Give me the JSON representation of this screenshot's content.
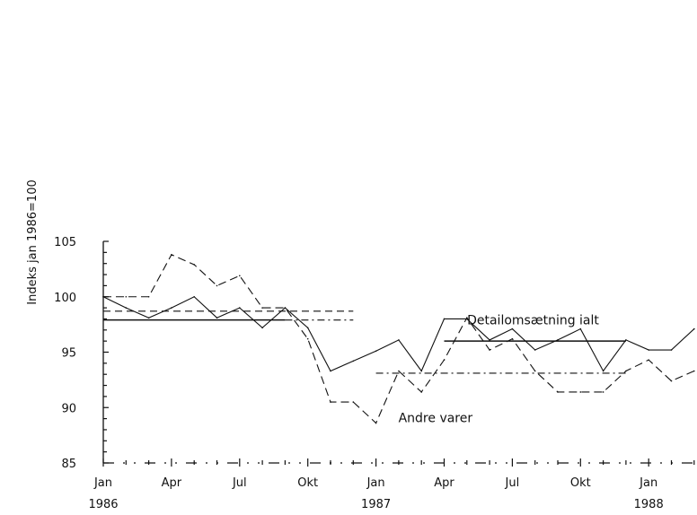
{
  "chart_data": {
    "type": "line",
    "ylabel": "Indeks jan 1986=100",
    "ylim": [
      85,
      105
    ],
    "yticks": [
      85,
      90,
      95,
      100,
      105
    ],
    "x_tick_labels": [
      {
        "month": 0,
        "label": "Jan"
      },
      {
        "month": 3,
        "label": "Apr"
      },
      {
        "month": 6,
        "label": "Jul"
      },
      {
        "month": 9,
        "label": "Okt"
      },
      {
        "month": 12,
        "label": "Jan"
      },
      {
        "month": 15,
        "label": "Apr"
      },
      {
        "month": 18,
        "label": "Jul"
      },
      {
        "month": 21,
        "label": "Okt"
      },
      {
        "month": 24,
        "label": "Jan"
      }
    ],
    "year_labels": [
      {
        "month": 0,
        "label": "1986"
      },
      {
        "month": 12,
        "label": "1987"
      },
      {
        "month": 24,
        "label": "1988"
      }
    ],
    "x_range": [
      "1986-01",
      "1988-03"
    ],
    "series": [
      {
        "name": "Detailomsætning ialt",
        "style": "solid",
        "x": [
          "1986-01",
          "1986-02",
          "1986-03",
          "1986-04",
          "1986-05",
          "1986-06",
          "1986-07",
          "1986-08",
          "1986-09",
          "1986-10",
          "1986-11",
          "1986-12",
          "1987-01",
          "1987-02",
          "1987-03",
          "1987-04",
          "1987-05",
          "1987-06",
          "1987-07",
          "1987-08",
          "1987-09",
          "1987-10",
          "1987-11",
          "1987-12",
          "1988-01",
          "1988-02",
          "1988-03"
        ],
        "values": [
          100.0,
          99.0,
          98.1,
          99.0,
          100.0,
          98.1,
          99.0,
          97.2,
          99.0,
          97.2,
          93.3,
          94.2,
          95.1,
          96.1,
          93.3,
          98.0,
          98.0,
          96.1,
          97.1,
          95.2,
          96.1,
          97.1,
          93.3,
          96.1,
          95.2,
          95.2,
          97.1
        ]
      },
      {
        "name": "Andre varer",
        "style": "dashed",
        "x": [
          "1986-01",
          "1986-02",
          "1986-03",
          "1986-04",
          "1986-05",
          "1986-06",
          "1986-07",
          "1986-08",
          "1986-09",
          "1986-10",
          "1986-11",
          "1986-12",
          "1987-01",
          "1987-02",
          "1987-03",
          "1987-04",
          "1987-05",
          "1987-06",
          "1987-07",
          "1987-08",
          "1987-09",
          "1987-10",
          "1987-11",
          "1987-12",
          "1988-01",
          "1988-02",
          "1988-03"
        ],
        "values": [
          100.0,
          100.0,
          100.0,
          103.8,
          102.9,
          101.0,
          101.9,
          99.0,
          99.0,
          96.2,
          90.5,
          90.5,
          88.6,
          93.3,
          91.4,
          94.3,
          98.1,
          95.2,
          96.2,
          93.3,
          91.4,
          91.4,
          91.4,
          93.3,
          94.3,
          92.4,
          93.3
        ]
      }
    ],
    "reference_levels": [
      {
        "style": "dash",
        "value": 98.7,
        "from": "1986-01",
        "to": "1986-12"
      },
      {
        "style": "solid",
        "value": 97.9,
        "from": "1986-01",
        "to": "1986-09"
      },
      {
        "style": "dash-dot",
        "value": 97.9,
        "from": "1986-09",
        "to": "1986-12"
      },
      {
        "style": "solid",
        "value": 96.0,
        "from": "1987-04",
        "to": "1987-12"
      },
      {
        "style": "dash-dot",
        "value": 93.1,
        "from": "1987-01",
        "to": "1987-12"
      }
    ],
    "annotations": [
      {
        "text": "Detailomsætning ialt",
        "x": "1987-06",
        "y": 97.9
      },
      {
        "text": "Andre varer",
        "x": "1987-01",
        "y": 89.1
      }
    ],
    "grid": false,
    "legend": "none"
  }
}
